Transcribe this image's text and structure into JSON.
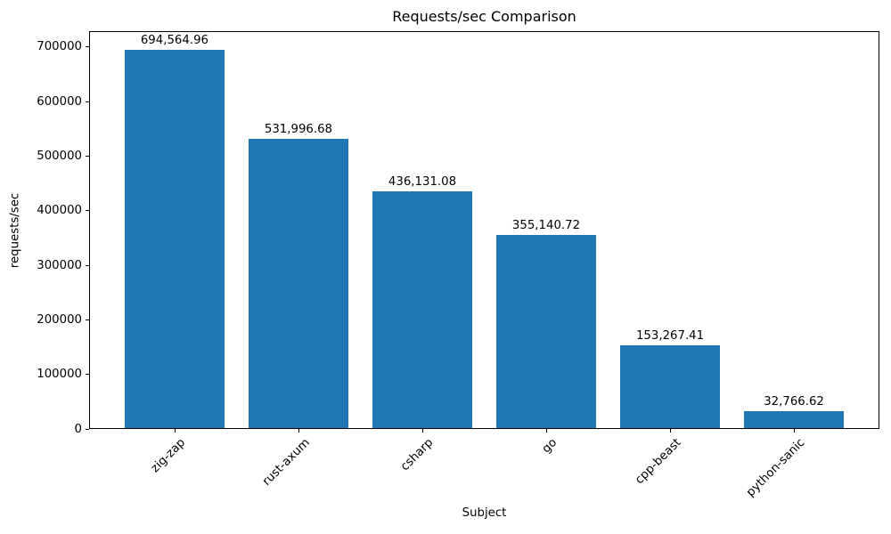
{
  "chart_data": {
    "type": "bar",
    "title": "Requests/sec Comparison",
    "xlabel": "Subject",
    "ylabel": "requests/sec",
    "categories": [
      "zig-zap",
      "rust-axum",
      "csharp",
      "go",
      "cpp-beast",
      "python-sanic"
    ],
    "values": [
      694564.96,
      531996.68,
      436131.08,
      355140.72,
      153267.41,
      32766.62
    ],
    "value_labels": [
      "694,564.96",
      "531,996.68",
      "436,131.08",
      "355,140.72",
      "153,267.41",
      "32,766.62"
    ],
    "yticks": [
      0,
      100000,
      200000,
      300000,
      400000,
      500000,
      600000,
      700000
    ],
    "ylim": [
      0,
      729293
    ],
    "bar_color": "#1f77b4",
    "grid": false,
    "legend": null,
    "x_tick_label_rotation_deg": 45
  }
}
